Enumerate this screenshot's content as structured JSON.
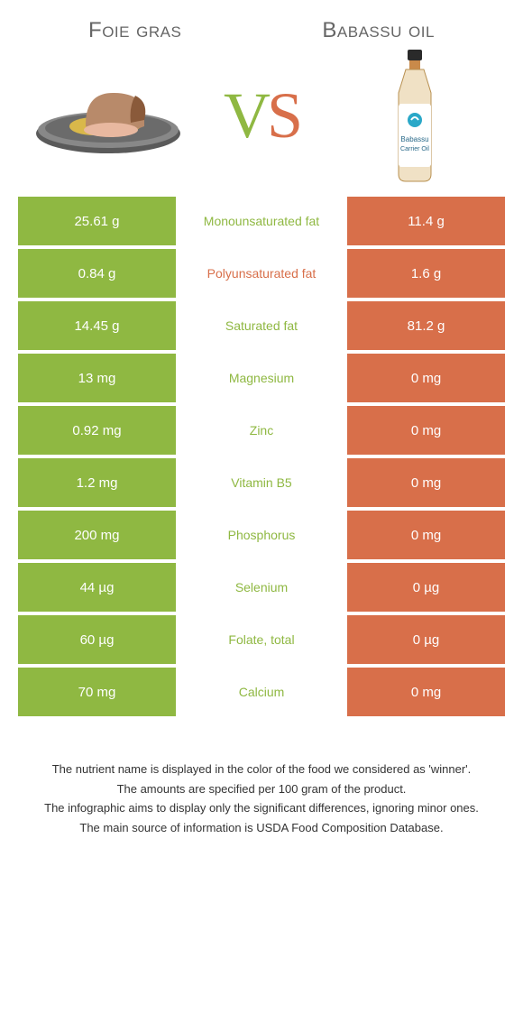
{
  "colors": {
    "left": "#8fb842",
    "right": "#d86f4a",
    "text_white": "#ffffff",
    "title_gray": "#666666"
  },
  "header": {
    "left_title": "Foie gras",
    "right_title": "Babassu oil",
    "vs_v": "V",
    "vs_s": "S"
  },
  "rows": [
    {
      "left": "25.61 g",
      "label": "Monounsaturated fat",
      "right": "11.4 g",
      "winner": "left"
    },
    {
      "left": "0.84 g",
      "label": "Polyunsaturated fat",
      "right": "1.6 g",
      "winner": "right"
    },
    {
      "left": "14.45 g",
      "label": "Saturated fat",
      "right": "81.2 g",
      "winner": "left"
    },
    {
      "left": "13 mg",
      "label": "Magnesium",
      "right": "0 mg",
      "winner": "left"
    },
    {
      "left": "0.92 mg",
      "label": "Zinc",
      "right": "0 mg",
      "winner": "left"
    },
    {
      "left": "1.2 mg",
      "label": "Vitamin B5",
      "right": "0 mg",
      "winner": "left"
    },
    {
      "left": "200 mg",
      "label": "Phosphorus",
      "right": "0 mg",
      "winner": "left"
    },
    {
      "left": "44 µg",
      "label": "Selenium",
      "right": "0 µg",
      "winner": "left"
    },
    {
      "left": "60 µg",
      "label": "Folate, total",
      "right": "0 µg",
      "winner": "left"
    },
    {
      "left": "70 mg",
      "label": "Calcium",
      "right": "0 mg",
      "winner": "left"
    }
  ],
  "footer": {
    "line1": "The nutrient name is displayed in the color of the food we considered as 'winner'.",
    "line2": "The amounts are specified per 100 gram of the product.",
    "line3": "The infographic aims to display only the significant differences, ignoring minor ones.",
    "line4": "The main source of information is USDA Food Composition Database."
  },
  "bottle_label": {
    "line1": "Babassu",
    "line2": "Carrier Oil"
  }
}
